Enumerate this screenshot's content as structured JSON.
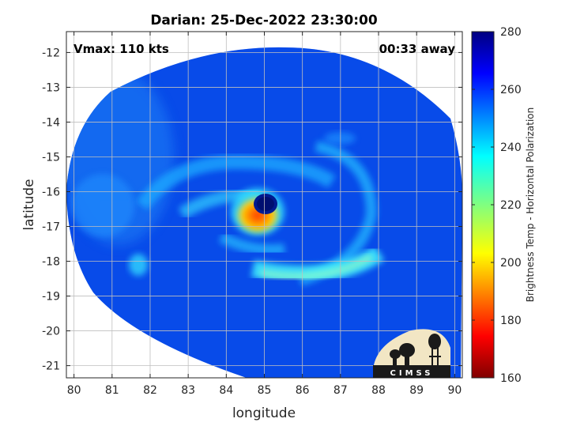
{
  "chart_data": {
    "type": "heatmap",
    "title": "Darian: 25-Dec-2022 23:30:00",
    "xlabel": "longitude",
    "ylabel": "latitude",
    "xlim": [
      79.8,
      90.2
    ],
    "ylim": [
      -21.35,
      -11.4
    ],
    "x_ticks": [
      80,
      81,
      82,
      83,
      84,
      85,
      86,
      87,
      88,
      89,
      90
    ],
    "y_ticks": [
      -12,
      -13,
      -14,
      -15,
      -16,
      -17,
      -18,
      -19,
      -20,
      -21
    ],
    "grid": true,
    "annotations": {
      "vmax": "Vmax: 110 kts",
      "time_away": "00:33 away"
    },
    "colorbar": {
      "label": "Brightness Temp - Horizontal Polarization",
      "range": [
        160,
        280
      ],
      "ticks": [
        160,
        180,
        200,
        220,
        240,
        260,
        280
      ],
      "colormap": "jet"
    },
    "storm_center": {
      "lon": 85.1,
      "lat": -16.3
    },
    "eye_ring_min_temp": 185,
    "swath_background_temp": 262,
    "logo": "CIMSS"
  }
}
